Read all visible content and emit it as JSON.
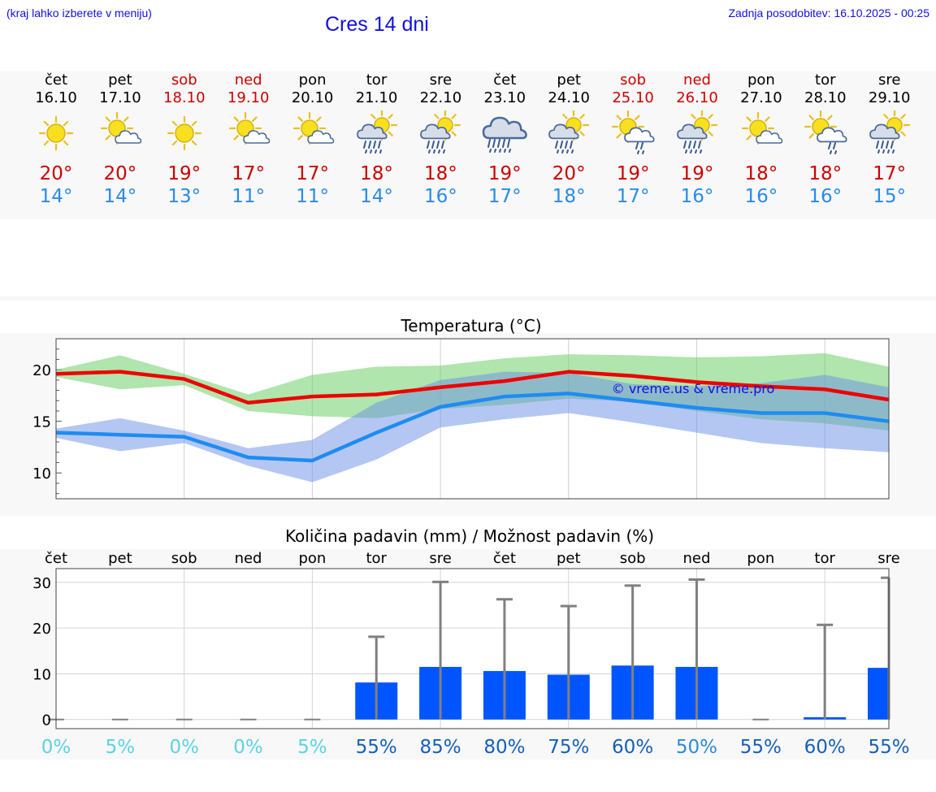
{
  "header": {
    "hint": "(kraj lahko izberete v meniju)",
    "title": "Cres 14 dni",
    "updated": "Zadnja posodobitev: 16.10.2025 - 00:25"
  },
  "colors": {
    "accent": "#1010e0",
    "max_temp": "#cc0000",
    "min_temp": "#2a8ae8",
    "bar": "#0055ff",
    "weekend": "#d00000"
  },
  "days": [
    {
      "name": "čet",
      "date": "16.10",
      "weekend": false,
      "icon": "sun-icon",
      "max": "20°",
      "min": "14°"
    },
    {
      "name": "pet",
      "date": "17.10",
      "weekend": false,
      "icon": "sun-cloud-icon",
      "max": "20°",
      "min": "14°"
    },
    {
      "name": "sob",
      "date": "18.10",
      "weekend": true,
      "icon": "sun-icon",
      "max": "19°",
      "min": "13°"
    },
    {
      "name": "ned",
      "date": "19.10",
      "weekend": true,
      "icon": "sun-cloud-icon",
      "max": "17°",
      "min": "11°"
    },
    {
      "name": "pon",
      "date": "20.10",
      "weekend": false,
      "icon": "sun-cloud-icon",
      "max": "17°",
      "min": "11°"
    },
    {
      "name": "tor",
      "date": "21.10",
      "weekend": false,
      "icon": "sun-rain-icon",
      "max": "18°",
      "min": "14°"
    },
    {
      "name": "sre",
      "date": "22.10",
      "weekend": false,
      "icon": "sun-rain-icon",
      "max": "18°",
      "min": "16°"
    },
    {
      "name": "čet",
      "date": "23.10",
      "weekend": false,
      "icon": "heavy-rain-icon",
      "max": "19°",
      "min": "17°"
    },
    {
      "name": "pet",
      "date": "24.10",
      "weekend": false,
      "icon": "sun-rain-icon",
      "max": "20°",
      "min": "18°"
    },
    {
      "name": "sob",
      "date": "25.10",
      "weekend": true,
      "icon": "sun-cloud-drizzle-icon",
      "max": "19°",
      "min": "17°"
    },
    {
      "name": "ned",
      "date": "26.10",
      "weekend": true,
      "icon": "sun-rain-icon",
      "max": "19°",
      "min": "16°"
    },
    {
      "name": "pon",
      "date": "27.10",
      "weekend": false,
      "icon": "sun-cloud-icon",
      "max": "18°",
      "min": "16°"
    },
    {
      "name": "tor",
      "date": "28.10",
      "weekend": false,
      "icon": "sun-cloud-drizzle-icon",
      "max": "18°",
      "min": "16°"
    },
    {
      "name": "sre",
      "date": "29.10",
      "weekend": false,
      "icon": "sun-rain-icon",
      "max": "17°",
      "min": "15°"
    }
  ],
  "chart_data": [
    {
      "type": "line",
      "title": "Temperatura (°C)",
      "ylim": [
        7.5,
        23
      ],
      "yticks": [
        10,
        15,
        20
      ],
      "watermark": "© vreme.us & vreme.pro",
      "x_count": 14,
      "series": [
        {
          "name": "max",
          "values": [
            19.6,
            19.8,
            19.1,
            16.8,
            17.4,
            17.6,
            18.3,
            18.9,
            19.8,
            19.4,
            18.8,
            18.4,
            18.1,
            17.1
          ],
          "band_low": [
            19.3,
            18.1,
            18.5,
            16.0,
            15.5,
            15.3,
            16.2,
            16.6,
            17.2,
            16.9,
            16.0,
            15.2,
            14.8,
            14.1
          ],
          "band_high": [
            20.0,
            21.4,
            19.6,
            17.6,
            19.5,
            20.3,
            20.4,
            21.1,
            21.5,
            21.4,
            21.2,
            21.3,
            21.6,
            20.3
          ]
        },
        {
          "name": "min",
          "values": [
            13.9,
            13.7,
            13.5,
            11.5,
            11.2,
            13.9,
            16.4,
            17.4,
            17.7,
            17.0,
            16.3,
            15.8,
            15.8,
            15.0
          ],
          "band_low": [
            13.4,
            12.1,
            12.9,
            10.7,
            9.1,
            11.3,
            14.4,
            15.2,
            15.8,
            14.9,
            13.9,
            12.9,
            12.4,
            12.0
          ],
          "band_high": [
            14.3,
            15.3,
            14.1,
            12.4,
            13.2,
            16.8,
            19.0,
            19.8,
            19.7,
            18.6,
            18.4,
            18.7,
            19.5,
            18.3
          ]
        }
      ]
    },
    {
      "type": "bar",
      "title": "Količina padavin (mm) / Možnost padavin (%)",
      "categories": [
        "čet",
        "pet",
        "sob",
        "ned",
        "pon",
        "tor",
        "sre",
        "čet",
        "pet",
        "sob",
        "ned",
        "pon",
        "tor",
        "sre"
      ],
      "values": [
        0,
        0,
        0,
        0,
        0,
        8.1,
        11.5,
        10.6,
        9.8,
        11.8,
        11.5,
        0,
        0.5,
        11.3
      ],
      "error_high": [
        0,
        0,
        0,
        0,
        0,
        18.1,
        30.1,
        26.3,
        24.8,
        29.3,
        30.6,
        0,
        20.7,
        31.0
      ],
      "ylim": [
        -2,
        33
      ],
      "yticks": [
        0,
        10,
        20,
        30
      ],
      "chance_labels": [
        "0%",
        "5%",
        "0%",
        "0%",
        "5%",
        "55%",
        "85%",
        "80%",
        "75%",
        "60%",
        "50%",
        "55%",
        "60%",
        "55%"
      ],
      "chance_colors": [
        "#5bd2e6",
        "#5bd2e6",
        "#5bd2e6",
        "#5bd2e6",
        "#5bd2e6",
        "#1560b8",
        "#1560b8",
        "#1560b8",
        "#1560b8",
        "#1560b8",
        "#2e8ad8",
        "#1560b8",
        "#1560b8",
        "#1560b8"
      ]
    }
  ]
}
